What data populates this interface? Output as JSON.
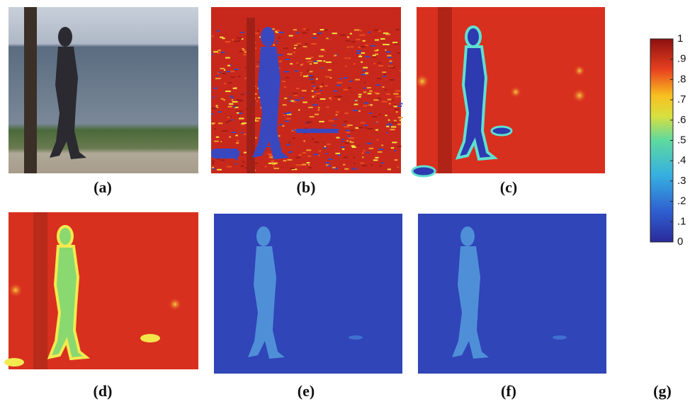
{
  "panels": [
    {
      "label": "(a)"
    },
    {
      "label": "(b)"
    },
    {
      "label": "(c)"
    },
    {
      "label": "(d)"
    },
    {
      "label": "(e)"
    },
    {
      "label": "(f)"
    }
  ],
  "colorbar": {
    "label": "(g)",
    "lim": [
      0,
      1
    ],
    "ticks": [
      1,
      {
        "value": 0.9,
        "label": ".9"
      },
      {
        "value": 0.8,
        "label": ".8"
      },
      {
        "value": 0.7,
        "label": ".7"
      },
      {
        "value": 0.6,
        "label": ".6"
      },
      {
        "value": 0.5,
        "label": ".5"
      },
      {
        "value": 0.4,
        "label": ".4"
      },
      {
        "value": 0.3,
        "label": ".3"
      },
      {
        "value": 0.2,
        "label": ".2"
      },
      {
        "value": 0.1,
        "label": ".1"
      },
      0
    ]
  }
}
